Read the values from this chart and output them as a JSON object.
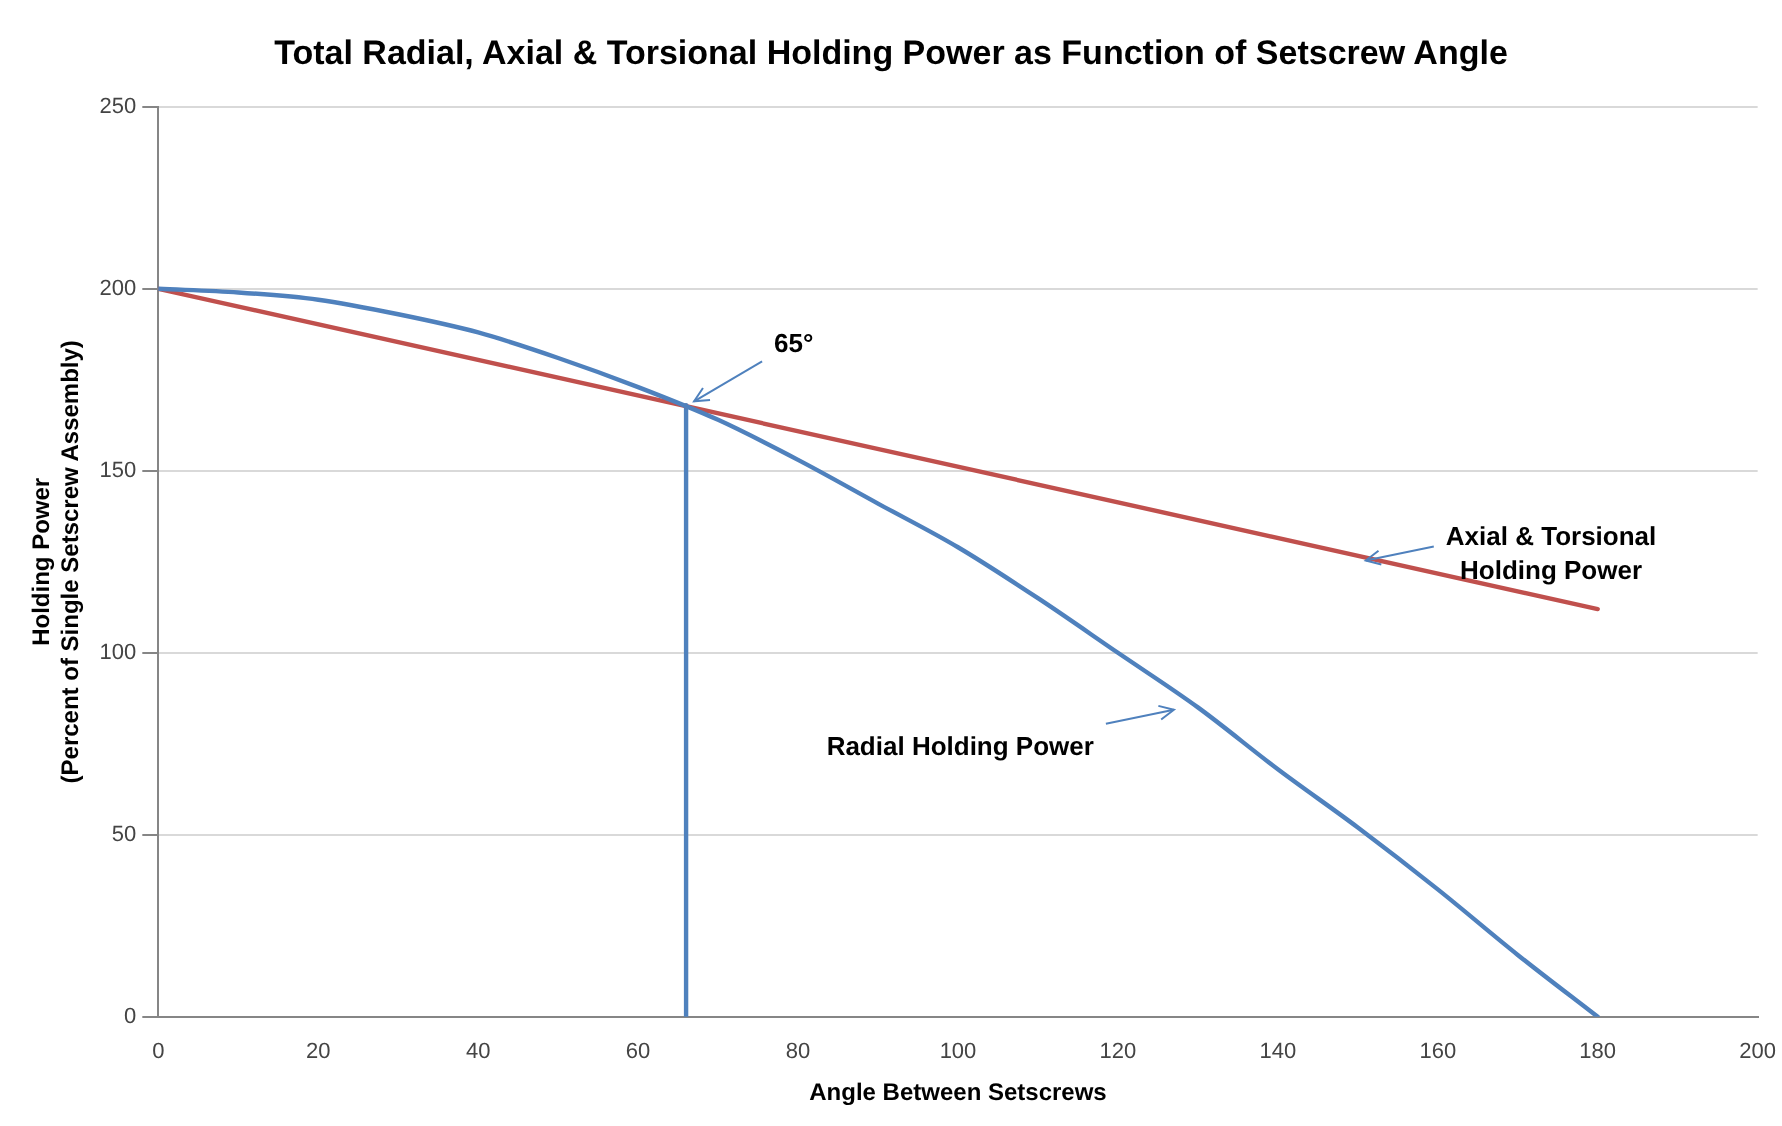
{
  "chart_data": {
    "type": "line",
    "title": "Total Radial, Axial & Torsional Holding Power as Function of Setscrew Angle",
    "xlabel": "Angle Between Setscrews",
    "ylabel": "Holding Power\n(Percent of Single Setscrew Assembly)",
    "series": [
      {
        "color": "#4f81bd",
        "x": [
          0,
          10,
          20,
          30,
          40,
          50,
          60,
          70,
          80,
          90,
          100,
          110,
          120,
          130,
          140,
          150,
          160,
          170,
          180
        ],
        "values": [
          200,
          199,
          197,
          193,
          188,
          181,
          173,
          164,
          153,
          141,
          129,
          115,
          100,
          85,
          68,
          52,
          35,
          17,
          0
        ]
      },
      {
        "color": "#c0504d",
        "x": [
          0,
          180
        ],
        "values": [
          200,
          112
        ]
      },
      {
        "color": "#4f81bd",
        "x": [
          66,
          66
        ],
        "values": [
          168,
          0
        ]
      }
    ],
    "annotations": [
      {
        "text": "65°",
        "x": 66,
        "y": 168
      },
      {
        "text": "Axial & Torsional\nHolding Power",
        "x": 150,
        "y": 127
      },
      {
        "text": "Radial Holding Power",
        "x": 128,
        "y": 86
      }
    ],
    "xlim": [
      0,
      200
    ],
    "xticks": [
      0,
      20,
      40,
      60,
      80,
      100,
      120,
      140,
      160,
      180,
      200
    ],
    "ylim": [
      0,
      250
    ],
    "yticks": [
      0,
      50,
      100,
      150,
      200,
      250
    ],
    "grid": "y",
    "legend": false,
    "marker": "none",
    "line_style": "solid"
  }
}
